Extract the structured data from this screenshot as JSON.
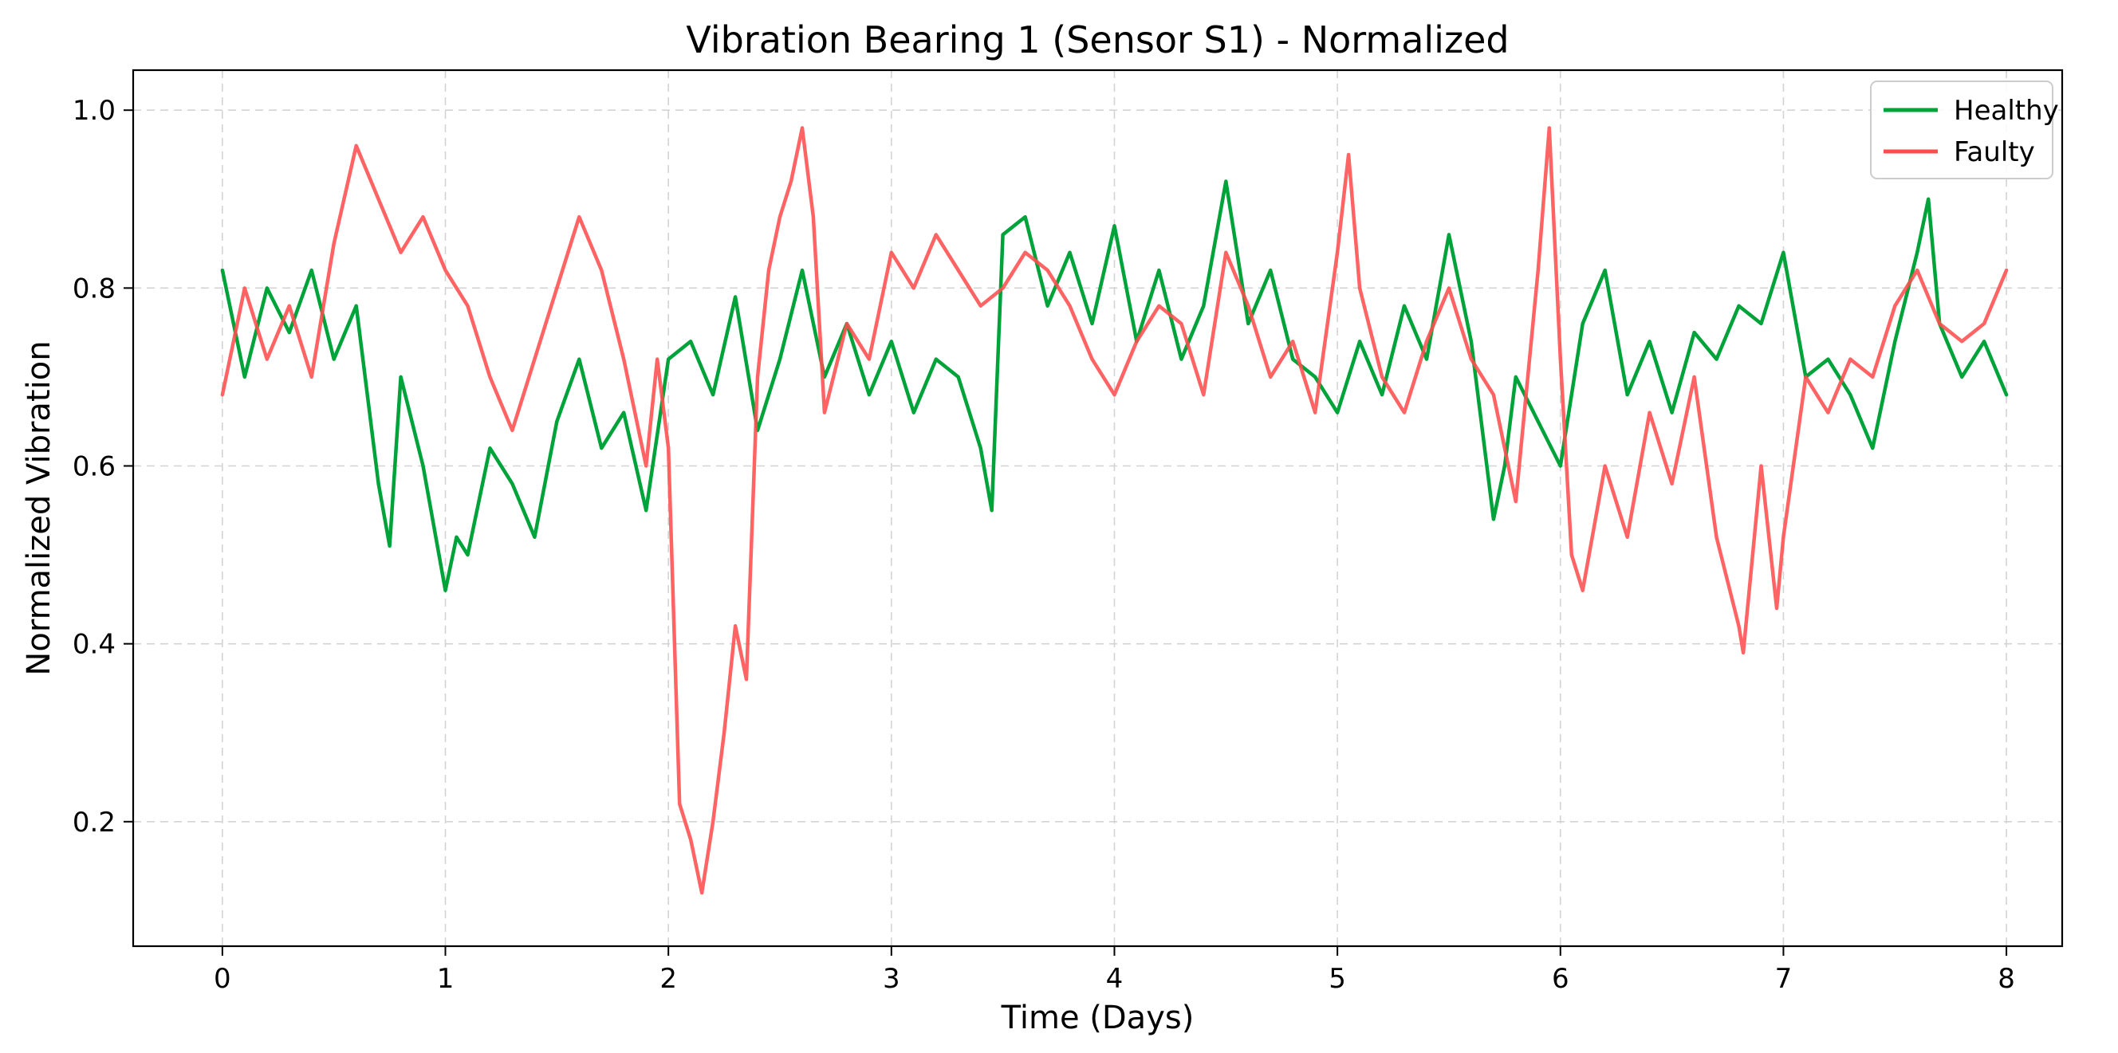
{
  "chart_data": {
    "type": "line",
    "title": "Vibration Bearing 1 (Sensor S1) - Normalized",
    "xlabel": "Time (Days)",
    "ylabel": "Normalized Vibration",
    "xlim": [
      -0.4,
      8.25
    ],
    "ylim": [
      0.06,
      1.045
    ],
    "xticks": [
      0,
      1,
      2,
      3,
      4,
      5,
      6,
      7,
      8
    ],
    "xtick_labels": [
      "0",
      "1",
      "2",
      "3",
      "4",
      "5",
      "6",
      "7",
      "8"
    ],
    "yticks": [
      0.2,
      0.4,
      0.6,
      0.8,
      1.0
    ],
    "ytick_labels": [
      "0.2",
      "0.4",
      "0.6",
      "0.8",
      "1.0"
    ],
    "grid": true,
    "legend": "top-right",
    "series": [
      {
        "name": "Healthy",
        "color": "#00a33a",
        "x": [
          0.0,
          0.1,
          0.2,
          0.3,
          0.4,
          0.5,
          0.6,
          0.7,
          0.75,
          0.8,
          0.9,
          1.0,
          1.05,
          1.1,
          1.2,
          1.3,
          1.4,
          1.5,
          1.6,
          1.7,
          1.8,
          1.9,
          2.0,
          2.1,
          2.2,
          2.3,
          2.4,
          2.5,
          2.6,
          2.7,
          2.8,
          2.9,
          3.0,
          3.1,
          3.2,
          3.3,
          3.4,
          3.45,
          3.5,
          3.6,
          3.7,
          3.8,
          3.9,
          4.0,
          4.1,
          4.2,
          4.3,
          4.4,
          4.5,
          4.55,
          4.6,
          4.7,
          4.8,
          4.9,
          5.0,
          5.1,
          5.2,
          5.3,
          5.4,
          5.5,
          5.6,
          5.7,
          5.75,
          5.8,
          5.9,
          6.0,
          6.1,
          6.2,
          6.3,
          6.4,
          6.5,
          6.6,
          6.7,
          6.8,
          6.9,
          7.0,
          7.1,
          7.2,
          7.3,
          7.4,
          7.5,
          7.6,
          7.65,
          7.7,
          7.8,
          7.9,
          8.0
        ],
        "values": [
          0.82,
          0.7,
          0.8,
          0.75,
          0.82,
          0.72,
          0.78,
          0.58,
          0.51,
          0.7,
          0.6,
          0.46,
          0.52,
          0.5,
          0.62,
          0.58,
          0.52,
          0.65,
          0.72,
          0.62,
          0.66,
          0.55,
          0.72,
          0.74,
          0.68,
          0.79,
          0.64,
          0.72,
          0.82,
          0.7,
          0.76,
          0.68,
          0.74,
          0.66,
          0.72,
          0.7,
          0.62,
          0.55,
          0.86,
          0.88,
          0.78,
          0.84,
          0.76,
          0.87,
          0.74,
          0.82,
          0.72,
          0.78,
          0.92,
          0.84,
          0.76,
          0.82,
          0.72,
          0.7,
          0.66,
          0.74,
          0.68,
          0.78,
          0.72,
          0.86,
          0.74,
          0.54,
          0.6,
          0.7,
          0.65,
          0.6,
          0.76,
          0.82,
          0.68,
          0.74,
          0.66,
          0.75,
          0.72,
          0.78,
          0.76,
          0.84,
          0.7,
          0.72,
          0.68,
          0.62,
          0.74,
          0.84,
          0.9,
          0.76,
          0.7,
          0.74,
          0.68
        ]
      },
      {
        "name": "Faulty",
        "color": "#ff4d4d",
        "x": [
          0.0,
          0.1,
          0.2,
          0.3,
          0.4,
          0.5,
          0.6,
          0.7,
          0.8,
          0.9,
          1.0,
          1.1,
          1.2,
          1.3,
          1.4,
          1.5,
          1.6,
          1.7,
          1.8,
          1.85,
          1.9,
          1.95,
          2.0,
          2.05,
          2.1,
          2.15,
          2.2,
          2.25,
          2.3,
          2.35,
          2.4,
          2.45,
          2.5,
          2.55,
          2.6,
          2.65,
          2.7,
          2.8,
          2.9,
          3.0,
          3.1,
          3.2,
          3.3,
          3.4,
          3.5,
          3.6,
          3.7,
          3.8,
          3.9,
          4.0,
          4.1,
          4.2,
          4.3,
          4.4,
          4.5,
          4.6,
          4.7,
          4.8,
          4.9,
          5.0,
          5.05,
          5.1,
          5.2,
          5.3,
          5.4,
          5.5,
          5.6,
          5.7,
          5.8,
          5.9,
          5.95,
          6.0,
          6.05,
          6.1,
          6.2,
          6.3,
          6.4,
          6.5,
          6.6,
          6.7,
          6.8,
          6.82,
          6.9,
          6.97,
          7.0,
          7.1,
          7.2,
          7.3,
          7.4,
          7.5,
          7.6,
          7.7,
          7.8,
          7.9,
          8.0
        ],
        "values": [
          0.68,
          0.8,
          0.72,
          0.78,
          0.7,
          0.85,
          0.96,
          0.9,
          0.84,
          0.88,
          0.82,
          0.78,
          0.7,
          0.64,
          0.72,
          0.8,
          0.88,
          0.82,
          0.72,
          0.66,
          0.6,
          0.72,
          0.62,
          0.22,
          0.18,
          0.12,
          0.2,
          0.3,
          0.42,
          0.36,
          0.7,
          0.82,
          0.88,
          0.92,
          0.98,
          0.88,
          0.66,
          0.76,
          0.72,
          0.84,
          0.8,
          0.86,
          0.82,
          0.78,
          0.8,
          0.84,
          0.82,
          0.78,
          0.72,
          0.68,
          0.74,
          0.78,
          0.76,
          0.68,
          0.84,
          0.78,
          0.7,
          0.74,
          0.66,
          0.84,
          0.95,
          0.8,
          0.7,
          0.66,
          0.74,
          0.8,
          0.72,
          0.68,
          0.56,
          0.82,
          0.98,
          0.72,
          0.5,
          0.46,
          0.6,
          0.52,
          0.66,
          0.58,
          0.7,
          0.52,
          0.42,
          0.39,
          0.6,
          0.44,
          0.52,
          0.7,
          0.66,
          0.72,
          0.7,
          0.78,
          0.82,
          0.76,
          0.74,
          0.76,
          0.82
        ]
      }
    ]
  }
}
